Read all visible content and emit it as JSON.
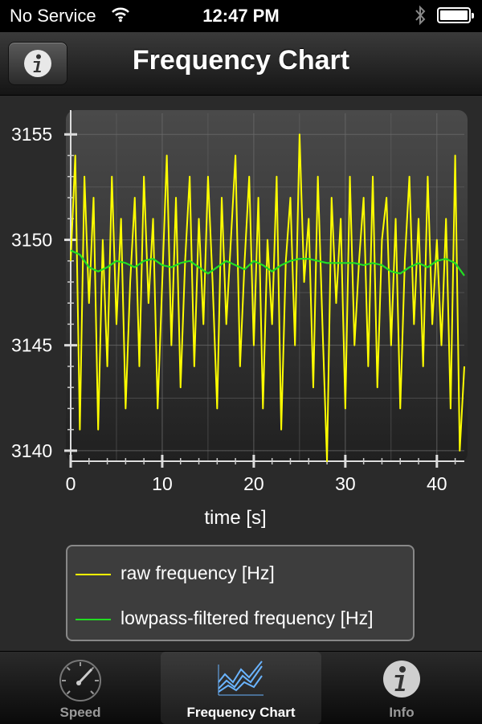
{
  "status_bar": {
    "carrier": "No Service",
    "time": "12:47 PM"
  },
  "nav": {
    "title": "Frequency Chart"
  },
  "tabs": [
    {
      "label": "Speed",
      "icon": "speedometer-icon",
      "selected": false
    },
    {
      "label": "Frequency Chart",
      "icon": "chart-icon",
      "selected": true
    },
    {
      "label": "Info",
      "icon": "info-icon",
      "selected": false
    }
  ],
  "colors": {
    "raw": "#ffff00",
    "filtered": "#22dd22",
    "grid": "#6a6a6a"
  },
  "chart_data": {
    "type": "line",
    "title": "",
    "xlabel": "time [s]",
    "ylabel": "",
    "xlim": [
      0,
      43
    ],
    "ylim": [
      3139.5,
      3156
    ],
    "xticks": [
      0,
      10,
      20,
      30,
      40
    ],
    "yticks": [
      3140,
      3145,
      3150,
      3155
    ],
    "grid": true,
    "legend_position": "bottom",
    "series": [
      {
        "name": "raw frequency [Hz]",
        "color": "#ffff00",
        "x": [
          0,
          0.5,
          1,
          1.5,
          2,
          2.5,
          3,
          3.5,
          4,
          4.5,
          5,
          5.5,
          6,
          6.5,
          7,
          7.5,
          8,
          8.5,
          9,
          9.5,
          10,
          10.5,
          11,
          11.5,
          12,
          12.5,
          13,
          13.5,
          14,
          14.5,
          15,
          15.5,
          16,
          16.5,
          17,
          17.5,
          18,
          18.5,
          19,
          19.5,
          20,
          20.5,
          21,
          21.5,
          22,
          22.5,
          23,
          23.5,
          24,
          24.5,
          25,
          25.5,
          26,
          26.5,
          27,
          27.5,
          28,
          28.5,
          29,
          29.5,
          30,
          30.5,
          31,
          31.5,
          32,
          32.5,
          33,
          33.5,
          34,
          34.5,
          35,
          35.5,
          36,
          36.5,
          37,
          37.5,
          38,
          38.5,
          39,
          39.5,
          40,
          40.5,
          41,
          41.5,
          42,
          42.5,
          43
        ],
        "values": [
          3149,
          3154,
          3141,
          3153,
          3147,
          3152,
          3141,
          3150,
          3144,
          3153,
          3146,
          3151,
          3142,
          3148,
          3152,
          3144,
          3153,
          3147,
          3151,
          3142,
          3148,
          3154,
          3145,
          3152,
          3143,
          3149,
          3153,
          3144,
          3151,
          3146,
          3153,
          3148,
          3142,
          3152,
          3146,
          3150,
          3154,
          3144,
          3149,
          3153,
          3145,
          3152,
          3142,
          3150,
          3146,
          3153,
          3141,
          3149,
          3152,
          3145,
          3155,
          3148,
          3151,
          3143,
          3153,
          3146,
          3139.5,
          3152,
          3147,
          3151,
          3142,
          3153,
          3145,
          3149,
          3152,
          3144,
          3153,
          3143,
          3150,
          3152,
          3145,
          3151,
          3142,
          3149,
          3153,
          3146,
          3151,
          3144,
          3153,
          3146,
          3150,
          3145,
          3151,
          3142,
          3154,
          3140,
          3144
        ],
        "x_count": 87
      },
      {
        "name": "lowpass-filtered frequency [Hz]",
        "color": "#22dd22",
        "x": [
          0,
          1,
          2,
          3,
          4,
          5,
          6,
          7,
          8,
          9,
          10,
          11,
          12,
          13,
          14,
          15,
          16,
          17,
          18,
          19,
          20,
          21,
          22,
          23,
          24,
          25,
          26,
          27,
          28,
          29,
          30,
          31,
          32,
          33,
          34,
          35,
          36,
          37,
          38,
          39,
          40,
          41,
          42,
          43
        ],
        "values": [
          3149.5,
          3149.3,
          3148.7,
          3148.5,
          3148.7,
          3149,
          3148.9,
          3148.7,
          3149,
          3149.1,
          3148.8,
          3148.7,
          3148.9,
          3149,
          3148.7,
          3148.4,
          3148.7,
          3149,
          3148.8,
          3148.6,
          3149,
          3148.8,
          3148.5,
          3148.8,
          3149,
          3149.1,
          3149.1,
          3149,
          3148.9,
          3148.9,
          3148.9,
          3148.9,
          3148.8,
          3148.9,
          3148.8,
          3148.5,
          3148.4,
          3148.7,
          3148.9,
          3148.7,
          3149,
          3149.1,
          3148.9,
          3148.3
        ]
      }
    ]
  }
}
